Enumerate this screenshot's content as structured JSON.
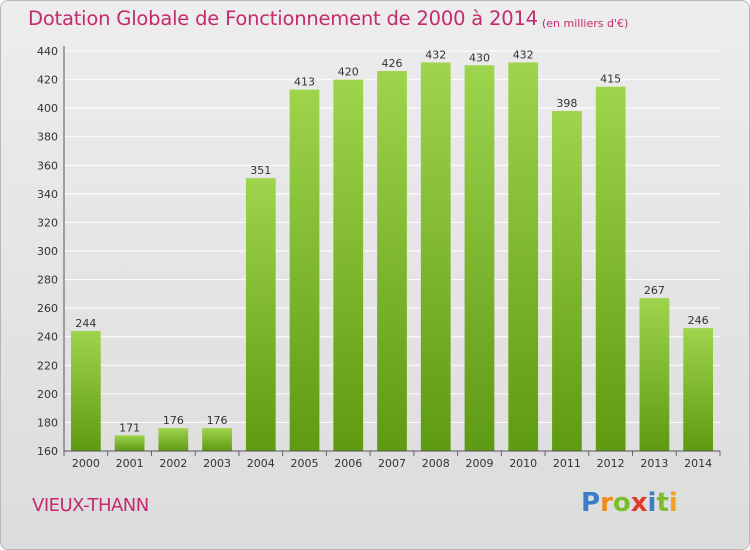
{
  "chart_data": {
    "type": "bar",
    "title": "Dotation Globale de Fonctionnement de 2000 à 2014",
    "unit": "(en milliers d'€)",
    "categories": [
      "2000",
      "2001",
      "2002",
      "2003",
      "2004",
      "2005",
      "2006",
      "2007",
      "2008",
      "2009",
      "2010",
      "2011",
      "2012",
      "2013",
      "2014"
    ],
    "values": [
      244,
      171,
      176,
      176,
      351,
      413,
      420,
      426,
      432,
      430,
      432,
      398,
      415,
      267,
      246
    ],
    "value_labels": [
      "244",
      "171",
      "176",
      "176",
      "351",
      "413",
      "420",
      "426",
      "432",
      "430",
      "432",
      "398",
      "415",
      "267",
      "246"
    ],
    "ylim": [
      160,
      440
    ],
    "yticks": [
      160,
      180,
      200,
      220,
      240,
      260,
      280,
      300,
      320,
      340,
      360,
      380,
      400,
      420,
      440
    ],
    "ytick_labels": [
      "160",
      "180",
      "200",
      "220",
      "240",
      "260",
      "280",
      "300",
      "320",
      "340",
      "360",
      "380",
      "400",
      "420",
      "440"
    ],
    "grid": true,
    "colors": {
      "bar_top": "#9fd44d",
      "bar_bottom": "#5e9a12",
      "grid": "#ffffff",
      "text": "#c42a6e"
    }
  },
  "commune": "VIEUX-THANN",
  "logo": {
    "letters": [
      "P",
      "r",
      "o",
      "x",
      "i",
      "t",
      "i"
    ],
    "colors": [
      "#3a7ec8",
      "#f08a1c",
      "#7dbd2a",
      "#e23a2a",
      "#3a7ec8",
      "#7dbd2a",
      "#f0a21c"
    ]
  }
}
